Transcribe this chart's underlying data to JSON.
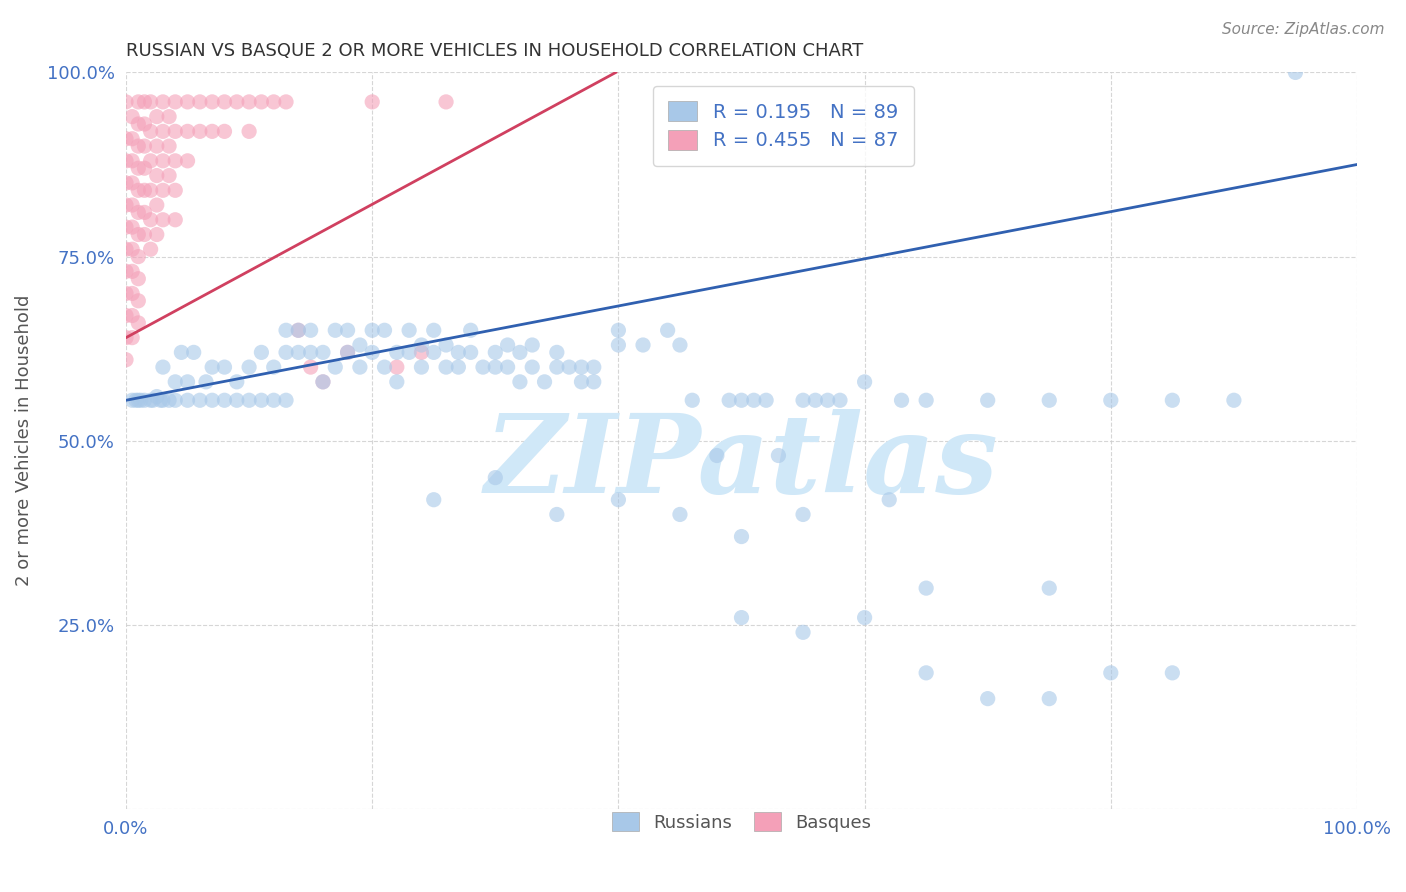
{
  "title": "RUSSIAN VS BASQUE 2 OR MORE VEHICLES IN HOUSEHOLD CORRELATION CHART",
  "source": "Source: ZipAtlas.com",
  "ylabel": "2 or more Vehicles in Household",
  "watermark": "ZIPatlas",
  "blue_color": "#a8c8e8",
  "pink_color": "#f4a0b8",
  "blue_line_color": "#3060b0",
  "pink_line_color": "#d04060",
  "axis_color": "#4472c4",
  "watermark_color": "#d0e8f8",
  "blue_line": [
    0.0,
    0.555,
    1.0,
    0.875
  ],
  "pink_line": [
    0.0,
    0.64,
    0.42,
    1.02
  ],
  "blue_points": [
    [
      0.005,
      0.555
    ],
    [
      0.008,
      0.555
    ],
    [
      0.01,
      0.555
    ],
    [
      0.012,
      0.555
    ],
    [
      0.015,
      0.555
    ],
    [
      0.02,
      0.555
    ],
    [
      0.022,
      0.555
    ],
    [
      0.025,
      0.56
    ],
    [
      0.028,
      0.555
    ],
    [
      0.03,
      0.6
    ],
    [
      0.03,
      0.555
    ],
    [
      0.035,
      0.555
    ],
    [
      0.04,
      0.58
    ],
    [
      0.04,
      0.555
    ],
    [
      0.045,
      0.62
    ],
    [
      0.05,
      0.555
    ],
    [
      0.05,
      0.58
    ],
    [
      0.055,
      0.62
    ],
    [
      0.06,
      0.555
    ],
    [
      0.065,
      0.58
    ],
    [
      0.07,
      0.6
    ],
    [
      0.07,
      0.555
    ],
    [
      0.08,
      0.555
    ],
    [
      0.08,
      0.6
    ],
    [
      0.09,
      0.555
    ],
    [
      0.09,
      0.58
    ],
    [
      0.1,
      0.555
    ],
    [
      0.1,
      0.6
    ],
    [
      0.11,
      0.555
    ],
    [
      0.11,
      0.62
    ],
    [
      0.12,
      0.555
    ],
    [
      0.12,
      0.6
    ],
    [
      0.13,
      0.555
    ],
    [
      0.13,
      0.62
    ],
    [
      0.13,
      0.65
    ],
    [
      0.14,
      0.62
    ],
    [
      0.14,
      0.65
    ],
    [
      0.15,
      0.62
    ],
    [
      0.15,
      0.65
    ],
    [
      0.16,
      0.58
    ],
    [
      0.16,
      0.62
    ],
    [
      0.17,
      0.6
    ],
    [
      0.17,
      0.65
    ],
    [
      0.18,
      0.62
    ],
    [
      0.18,
      0.65
    ],
    [
      0.19,
      0.6
    ],
    [
      0.19,
      0.63
    ],
    [
      0.2,
      0.62
    ],
    [
      0.2,
      0.65
    ],
    [
      0.21,
      0.6
    ],
    [
      0.21,
      0.65
    ],
    [
      0.22,
      0.58
    ],
    [
      0.22,
      0.62
    ],
    [
      0.23,
      0.62
    ],
    [
      0.23,
      0.65
    ],
    [
      0.24,
      0.6
    ],
    [
      0.24,
      0.63
    ],
    [
      0.25,
      0.62
    ],
    [
      0.25,
      0.65
    ],
    [
      0.26,
      0.6
    ],
    [
      0.26,
      0.63
    ],
    [
      0.27,
      0.6
    ],
    [
      0.27,
      0.62
    ],
    [
      0.28,
      0.62
    ],
    [
      0.28,
      0.65
    ],
    [
      0.29,
      0.6
    ],
    [
      0.3,
      0.6
    ],
    [
      0.3,
      0.62
    ],
    [
      0.31,
      0.6
    ],
    [
      0.31,
      0.63
    ],
    [
      0.32,
      0.58
    ],
    [
      0.32,
      0.62
    ],
    [
      0.33,
      0.6
    ],
    [
      0.33,
      0.63
    ],
    [
      0.34,
      0.58
    ],
    [
      0.35,
      0.6
    ],
    [
      0.35,
      0.62
    ],
    [
      0.36,
      0.6
    ],
    [
      0.37,
      0.58
    ],
    [
      0.37,
      0.6
    ],
    [
      0.38,
      0.58
    ],
    [
      0.38,
      0.6
    ],
    [
      0.4,
      0.63
    ],
    [
      0.4,
      0.65
    ],
    [
      0.42,
      0.63
    ],
    [
      0.44,
      0.65
    ],
    [
      0.45,
      0.63
    ],
    [
      0.46,
      0.555
    ],
    [
      0.48,
      0.48
    ],
    [
      0.49,
      0.555
    ],
    [
      0.5,
      0.555
    ],
    [
      0.51,
      0.555
    ],
    [
      0.52,
      0.555
    ],
    [
      0.53,
      0.48
    ],
    [
      0.55,
      0.555
    ],
    [
      0.56,
      0.555
    ],
    [
      0.57,
      0.555
    ],
    [
      0.58,
      0.555
    ],
    [
      0.6,
      0.58
    ],
    [
      0.63,
      0.555
    ],
    [
      0.65,
      0.555
    ],
    [
      0.65,
      0.3
    ],
    [
      0.7,
      0.555
    ],
    [
      0.75,
      0.555
    ],
    [
      0.75,
      0.3
    ],
    [
      0.8,
      0.555
    ],
    [
      0.85,
      0.555
    ],
    [
      0.85,
      0.185
    ],
    [
      0.9,
      0.555
    ],
    [
      0.95,
      1.0
    ],
    [
      0.25,
      0.42
    ],
    [
      0.3,
      0.45
    ],
    [
      0.35,
      0.4
    ],
    [
      0.4,
      0.42
    ],
    [
      0.45,
      0.4
    ],
    [
      0.5,
      0.37
    ],
    [
      0.5,
      0.26
    ],
    [
      0.55,
      0.24
    ],
    [
      0.55,
      0.4
    ],
    [
      0.6,
      0.26
    ],
    [
      0.62,
      0.42
    ],
    [
      0.65,
      0.185
    ],
    [
      0.7,
      0.15
    ],
    [
      0.75,
      0.15
    ],
    [
      0.8,
      0.185
    ]
  ],
  "pink_points": [
    [
      0.0,
      0.96
    ],
    [
      0.0,
      0.91
    ],
    [
      0.0,
      0.88
    ],
    [
      0.0,
      0.85
    ],
    [
      0.0,
      0.82
    ],
    [
      0.0,
      0.79
    ],
    [
      0.0,
      0.76
    ],
    [
      0.0,
      0.73
    ],
    [
      0.0,
      0.7
    ],
    [
      0.0,
      0.67
    ],
    [
      0.0,
      0.64
    ],
    [
      0.0,
      0.61
    ],
    [
      0.005,
      0.94
    ],
    [
      0.005,
      0.91
    ],
    [
      0.005,
      0.88
    ],
    [
      0.005,
      0.85
    ],
    [
      0.005,
      0.82
    ],
    [
      0.005,
      0.79
    ],
    [
      0.005,
      0.76
    ],
    [
      0.005,
      0.73
    ],
    [
      0.005,
      0.7
    ],
    [
      0.005,
      0.67
    ],
    [
      0.005,
      0.64
    ],
    [
      0.01,
      0.96
    ],
    [
      0.01,
      0.93
    ],
    [
      0.01,
      0.9
    ],
    [
      0.01,
      0.87
    ],
    [
      0.01,
      0.84
    ],
    [
      0.01,
      0.81
    ],
    [
      0.01,
      0.78
    ],
    [
      0.01,
      0.75
    ],
    [
      0.01,
      0.72
    ],
    [
      0.01,
      0.69
    ],
    [
      0.01,
      0.66
    ],
    [
      0.015,
      0.96
    ],
    [
      0.015,
      0.93
    ],
    [
      0.015,
      0.9
    ],
    [
      0.015,
      0.87
    ],
    [
      0.015,
      0.84
    ],
    [
      0.015,
      0.81
    ],
    [
      0.015,
      0.78
    ],
    [
      0.02,
      0.96
    ],
    [
      0.02,
      0.92
    ],
    [
      0.02,
      0.88
    ],
    [
      0.02,
      0.84
    ],
    [
      0.02,
      0.8
    ],
    [
      0.02,
      0.76
    ],
    [
      0.025,
      0.94
    ],
    [
      0.025,
      0.9
    ],
    [
      0.025,
      0.86
    ],
    [
      0.025,
      0.82
    ],
    [
      0.025,
      0.78
    ],
    [
      0.03,
      0.96
    ],
    [
      0.03,
      0.92
    ],
    [
      0.03,
      0.88
    ],
    [
      0.03,
      0.84
    ],
    [
      0.03,
      0.8
    ],
    [
      0.035,
      0.94
    ],
    [
      0.035,
      0.9
    ],
    [
      0.035,
      0.86
    ],
    [
      0.04,
      0.96
    ],
    [
      0.04,
      0.92
    ],
    [
      0.04,
      0.88
    ],
    [
      0.04,
      0.84
    ],
    [
      0.04,
      0.8
    ],
    [
      0.05,
      0.96
    ],
    [
      0.05,
      0.92
    ],
    [
      0.05,
      0.88
    ],
    [
      0.06,
      0.96
    ],
    [
      0.06,
      0.92
    ],
    [
      0.07,
      0.96
    ],
    [
      0.07,
      0.92
    ],
    [
      0.08,
      0.96
    ],
    [
      0.08,
      0.92
    ],
    [
      0.09,
      0.96
    ],
    [
      0.1,
      0.96
    ],
    [
      0.1,
      0.92
    ],
    [
      0.11,
      0.96
    ],
    [
      0.12,
      0.96
    ],
    [
      0.13,
      0.96
    ],
    [
      0.14,
      0.65
    ],
    [
      0.15,
      0.6
    ],
    [
      0.16,
      0.58
    ],
    [
      0.18,
      0.62
    ],
    [
      0.2,
      0.96
    ],
    [
      0.22,
      0.6
    ],
    [
      0.24,
      0.62
    ],
    [
      0.26,
      0.96
    ]
  ]
}
